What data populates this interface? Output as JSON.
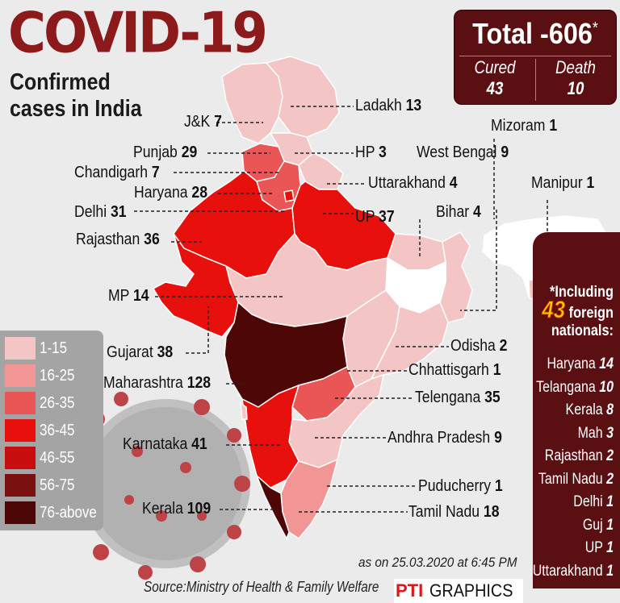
{
  "title": "COVID-19",
  "subtitle": "Confirmed cases in India",
  "summary": {
    "total_label": "Total -606",
    "asterisk": "*",
    "cured_label": "Cured",
    "cured_value": "43",
    "death_label": "Death",
    "death_value": "10"
  },
  "colors": {
    "bin_1_15": "#f4c5c5",
    "bin_16_25": "#f19595",
    "bin_26_35": "#ea5555",
    "bin_36_45": "#e8100c",
    "bin_46_55": "#c70d0d",
    "bin_56_75": "#7a1010",
    "bin_76_above": "#4d0707",
    "panel_dark": "#5a0f12"
  },
  "legend": [
    {
      "label": "1-15",
      "color": "#f4c5c5"
    },
    {
      "label": "16-25",
      "color": "#f19595"
    },
    {
      "label": "26-35",
      "color": "#ea5555"
    },
    {
      "label": "36-45",
      "color": "#e8100c"
    },
    {
      "label": "46-55",
      "color": "#c70d0d"
    },
    {
      "label": "56-75",
      "color": "#7a1010"
    },
    {
      "label": "76-above",
      "color": "#4d0707"
    }
  ],
  "states": [
    {
      "name": "Ladakh",
      "value": "13"
    },
    {
      "name": "J&K",
      "value": "7"
    },
    {
      "name": "Mizoram",
      "value": "1"
    },
    {
      "name": "Punjab",
      "value": "29"
    },
    {
      "name": "HP",
      "value": "3"
    },
    {
      "name": "West Bengal",
      "value": "9"
    },
    {
      "name": "Chandigarh",
      "value": "7"
    },
    {
      "name": "Uttarakhand",
      "value": "4"
    },
    {
      "name": "Manipur",
      "value": "1"
    },
    {
      "name": "Haryana",
      "value": "28"
    },
    {
      "name": "Bihar",
      "value": "4"
    },
    {
      "name": "Delhi",
      "value": "31"
    },
    {
      "name": "UP",
      "value": "37"
    },
    {
      "name": "Rajasthan",
      "value": "36"
    },
    {
      "name": "MP",
      "value": "14"
    },
    {
      "name": "Odisha",
      "value": "2"
    },
    {
      "name": "Gujarat",
      "value": "38"
    },
    {
      "name": "Chhattisgarh",
      "value": "1"
    },
    {
      "name": "Maharashtra",
      "value": "128"
    },
    {
      "name": "Telengana",
      "value": "35"
    },
    {
      "name": "Andhra Pradesh",
      "value": "9"
    },
    {
      "name": "Karnataka",
      "value": "41"
    },
    {
      "name": "Puducherry",
      "value": "1"
    },
    {
      "name": "Kerala",
      "value": "109"
    },
    {
      "name": "Tamil Nadu",
      "value": "18"
    }
  ],
  "foreign": {
    "prefix": "*Including",
    "count": "43",
    "suffix_1": "foreign",
    "suffix_2": "nationals:",
    "items": [
      {
        "name": "Haryana",
        "value": "14"
      },
      {
        "name": "Telangana",
        "value": "10"
      },
      {
        "name": "Kerala",
        "value": "8"
      },
      {
        "name": "Mah",
        "value": "3"
      },
      {
        "name": "Rajasthan",
        "value": "2"
      },
      {
        "name": "Tamil Nadu",
        "value": "2"
      },
      {
        "name": "Delhi",
        "value": "1"
      },
      {
        "name": "Guj",
        "value": "1"
      },
      {
        "name": "UP",
        "value": "1"
      },
      {
        "name": "Uttarakhand",
        "value": "1"
      }
    ]
  },
  "date_text": "as on 25.03.2020 at 6:45 PM",
  "source_text": "Source:Ministry of Health & Family Welfare",
  "credit_brand": "PTI",
  "credit_label": "GRAPHICS"
}
